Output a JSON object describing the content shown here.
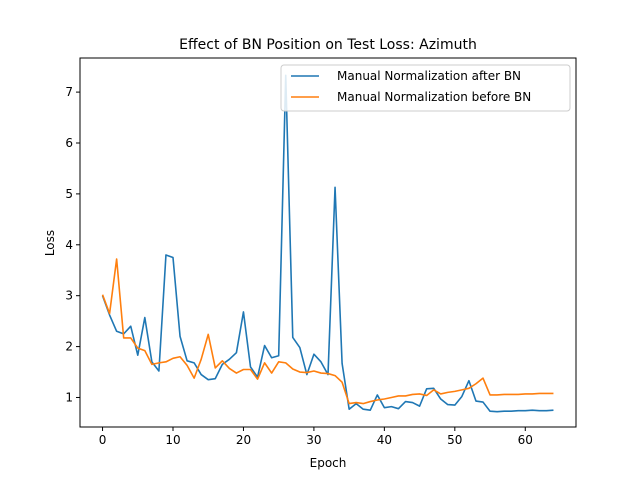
{
  "chart_data": {
    "type": "line",
    "title": "Effect of BN Position on Test Loss: Azimuth",
    "xlabel": "Epoch",
    "ylabel": "Loss",
    "xlim": [
      -3.2,
      67.2
    ],
    "ylim": [
      0.42,
      7.67
    ],
    "xticks": [
      0,
      10,
      20,
      30,
      40,
      50,
      60
    ],
    "yticks": [
      1,
      2,
      3,
      4,
      5,
      6,
      7
    ],
    "grid": false,
    "legend_position": "top-right",
    "series": [
      {
        "name": "Manual Normalization after BN",
        "color": "#1f77b4",
        "values": [
          3.0,
          2.62,
          2.3,
          2.25,
          2.4,
          1.83,
          2.57,
          1.7,
          1.52,
          3.8,
          3.75,
          2.2,
          1.72,
          1.68,
          1.45,
          1.35,
          1.37,
          1.65,
          1.75,
          1.88,
          2.68,
          1.6,
          1.4,
          2.02,
          1.78,
          1.82,
          7.33,
          2.18,
          1.98,
          1.45,
          1.85,
          1.7,
          1.45,
          5.13,
          1.67,
          0.77,
          0.88,
          0.77,
          0.75,
          1.05,
          0.8,
          0.82,
          0.78,
          0.92,
          0.9,
          0.83,
          1.17,
          1.18,
          0.97,
          0.86,
          0.85,
          1.02,
          1.33,
          0.93,
          0.91,
          0.73,
          0.72,
          0.73,
          0.73,
          0.74,
          0.74,
          0.75,
          0.74,
          0.74,
          0.75
        ]
      },
      {
        "name": "Manual Normalization before BN",
        "color": "#ff7f0e",
        "values": [
          3.02,
          2.65,
          3.72,
          2.17,
          2.17,
          1.97,
          1.92,
          1.65,
          1.68,
          1.7,
          1.77,
          1.8,
          1.63,
          1.38,
          1.75,
          2.24,
          1.58,
          1.72,
          1.57,
          1.48,
          1.55,
          1.55,
          1.36,
          1.68,
          1.48,
          1.7,
          1.68,
          1.56,
          1.5,
          1.49,
          1.52,
          1.48,
          1.47,
          1.43,
          1.3,
          0.88,
          0.9,
          0.88,
          0.92,
          0.95,
          0.97,
          1.0,
          1.03,
          1.03,
          1.06,
          1.07,
          1.04,
          1.15,
          1.07,
          1.1,
          1.12,
          1.15,
          1.18,
          1.27,
          1.38,
          1.05,
          1.05,
          1.06,
          1.06,
          1.06,
          1.07,
          1.07,
          1.08,
          1.08,
          1.08
        ]
      }
    ]
  }
}
